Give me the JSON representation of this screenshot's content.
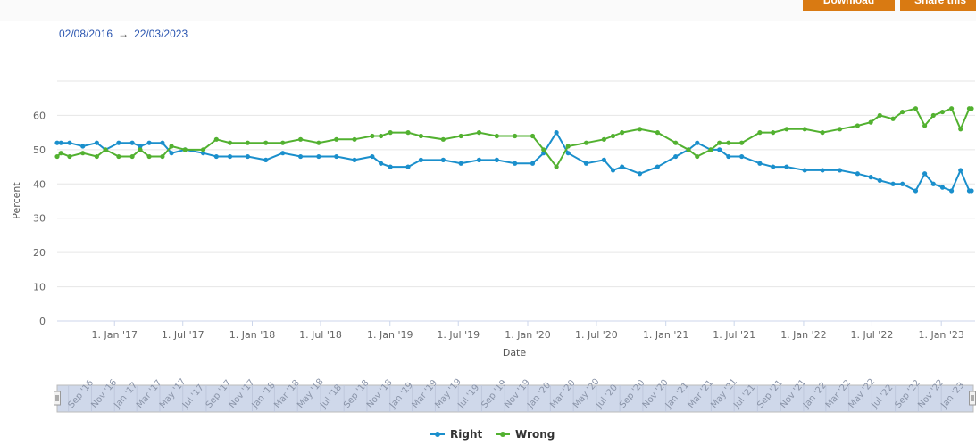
{
  "toolbar": {
    "download_label": "Download",
    "share_label": "Share this"
  },
  "range": {
    "from": "02/08/2016",
    "arrow": "→",
    "to": "22/03/2023"
  },
  "colors": {
    "right": "#1a8fcc",
    "wrong": "#52b130",
    "accent": "#d97a12"
  },
  "chart_data": {
    "type": "line",
    "title": "",
    "xlabel": "Date",
    "ylabel": "Percent",
    "xlim": [
      "2016-08-02",
      "2023-03-22"
    ],
    "ylim": [
      0,
      70
    ],
    "yticks": [
      0,
      10,
      20,
      30,
      40,
      50,
      60
    ],
    "xticks": [
      {
        "date": "2017-01-01",
        "label": "1. Jan '17"
      },
      {
        "date": "2017-07-01",
        "label": "1. Jul '17"
      },
      {
        "date": "2018-01-01",
        "label": "1. Jan '18"
      },
      {
        "date": "2018-07-01",
        "label": "1. Jul '18"
      },
      {
        "date": "2019-01-01",
        "label": "1. Jan '19"
      },
      {
        "date": "2019-07-01",
        "label": "1. Jul '19"
      },
      {
        "date": "2020-01-01",
        "label": "1. Jan '20"
      },
      {
        "date": "2020-07-01",
        "label": "1. Jul '20"
      },
      {
        "date": "2021-01-01",
        "label": "1. Jan '21"
      },
      {
        "date": "2021-07-01",
        "label": "1. Jul '21"
      },
      {
        "date": "2022-01-01",
        "label": "1. Jan '22"
      },
      {
        "date": "2022-07-01",
        "label": "1. Jul '22"
      },
      {
        "date": "2023-01-01",
        "label": "1. Jan '23"
      }
    ],
    "grid": true,
    "legend": "bottom-center",
    "x": [
      "2016-08-02",
      "2016-08-12",
      "2016-09-04",
      "2016-10-09",
      "2016-11-15",
      "2016-12-08",
      "2017-01-12",
      "2017-02-17",
      "2017-03-10",
      "2017-04-03",
      "2017-05-08",
      "2017-06-01",
      "2017-07-07",
      "2017-08-24",
      "2017-09-28",
      "2017-11-03",
      "2017-12-20",
      "2018-02-06",
      "2018-03-23",
      "2018-05-09",
      "2018-06-26",
      "2018-08-12",
      "2018-09-29",
      "2018-11-15",
      "2018-12-08",
      "2019-01-02",
      "2019-02-18",
      "2019-03-24",
      "2019-05-22",
      "2019-07-08",
      "2019-08-25",
      "2019-10-11",
      "2019-11-28",
      "2020-01-14",
      "2020-02-12",
      "2020-03-17",
      "2020-04-17",
      "2020-06-04",
      "2020-07-21",
      "2020-08-14",
      "2020-09-07",
      "2020-10-24",
      "2020-12-10",
      "2021-01-27",
      "2021-03-02",
      "2021-03-25",
      "2021-04-30",
      "2021-05-23",
      "2021-06-16",
      "2021-07-21",
      "2021-09-07",
      "2021-10-12",
      "2021-11-17",
      "2022-01-04",
      "2022-02-20",
      "2022-04-07",
      "2022-05-24",
      "2022-06-28",
      "2022-07-22",
      "2022-08-26",
      "2022-09-20",
      "2022-10-25",
      "2022-11-18",
      "2022-12-11",
      "2023-01-04",
      "2023-01-28",
      "2023-02-21",
      "2023-03-16",
      "2023-03-22"
    ],
    "series": [
      {
        "name": "Right",
        "values": [
          52,
          52,
          52,
          51,
          52,
          50,
          52,
          52,
          51,
          52,
          52,
          49,
          50,
          49,
          48,
          48,
          48,
          47,
          49,
          48,
          48,
          48,
          47,
          48,
          46,
          45,
          45,
          47,
          47,
          46,
          47,
          47,
          46,
          46,
          49,
          55,
          49,
          46,
          47,
          44,
          45,
          43,
          45,
          48,
          50,
          52,
          50,
          50,
          48,
          48,
          46,
          45,
          45,
          44,
          44,
          44,
          43,
          42,
          41,
          40,
          40,
          38,
          43,
          40,
          39,
          38,
          44,
          38,
          38
        ]
      },
      {
        "name": "Wrong",
        "values": [
          48,
          49,
          48,
          49,
          48,
          50,
          48,
          48,
          50,
          48,
          48,
          51,
          50,
          50,
          53,
          52,
          52,
          52,
          52,
          53,
          52,
          53,
          53,
          54,
          54,
          55,
          55,
          54,
          53,
          54,
          55,
          54,
          54,
          54,
          50,
          45,
          51,
          52,
          53,
          54,
          55,
          56,
          55,
          52,
          50,
          48,
          50,
          52,
          52,
          52,
          55,
          55,
          56,
          56,
          55,
          56,
          57,
          58,
          60,
          59,
          61,
          62,
          57,
          60,
          61,
          62,
          56,
          62,
          62
        ]
      }
    ]
  },
  "navigator": {
    "labels": [
      "Sep '16",
      "Nov '16",
      "Jan '17",
      "Mar '17",
      "May '17",
      "Jul '17",
      "Sep '17",
      "Nov '17",
      "Jan '18",
      "Mar '18",
      "May '18",
      "Jul '18",
      "Sep '18",
      "Nov '18",
      "Jan '19",
      "Mar '19",
      "May '19",
      "Jul '19",
      "Sep '19",
      "Nov '19",
      "Jan '20",
      "Mar '20",
      "May '20",
      "Jul '20",
      "Sep '20",
      "Nov '20",
      "Jan '21",
      "Mar '21",
      "May '21",
      "Jul '21",
      "Sep '21",
      "Nov '21",
      "Jan '22",
      "Mar '22",
      "May '22",
      "Jul '22",
      "Sep '22",
      "Nov '22",
      "Jan '23"
    ]
  }
}
